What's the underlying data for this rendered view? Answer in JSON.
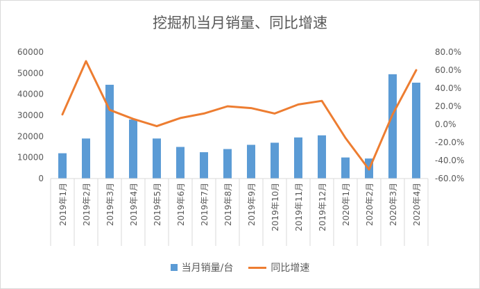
{
  "chart_data": {
    "type": "bar",
    "title": "挖掘机当月销量、同比增速",
    "categories": [
      "2019年1月",
      "2019年2月",
      "2019年3月",
      "2019年4月",
      "2019年5月",
      "2019年6月",
      "2019年7月",
      "2019年8月",
      "2019年9月",
      "2019年10月",
      "2019年11月",
      "2019年12月",
      "2020年1月",
      "2020年2月",
      "2020年3月",
      "2020年4月"
    ],
    "series": [
      {
        "name": "当月销量/台",
        "type": "bar",
        "axis": "left",
        "color": "#5B9BD5",
        "values": [
          12000,
          19000,
          44500,
          28000,
          19000,
          15000,
          12500,
          14000,
          16000,
          17000,
          19500,
          20500,
          10000,
          9500,
          49500,
          45500
        ]
      },
      {
        "name": "同比增速",
        "type": "line",
        "axis": "right",
        "color": "#ED7D31",
        "values": [
          0.11,
          0.7,
          0.16,
          0.06,
          -0.02,
          0.07,
          0.12,
          0.2,
          0.18,
          0.12,
          0.22,
          0.26,
          -0.15,
          -0.5,
          0.11,
          0.6
        ]
      }
    ],
    "y_left": {
      "ylim": [
        0,
        60000
      ],
      "ticks": [
        "0",
        "10000",
        "20000",
        "30000",
        "40000",
        "50000",
        "60000"
      ]
    },
    "y_right": {
      "ylim": [
        -0.6,
        0.8
      ],
      "ticks": [
        "-60.0%",
        "-40.0%",
        "-20.0%",
        "0.0%",
        "20.0%",
        "40.0%",
        "60.0%",
        "80.0%"
      ]
    },
    "grid": false,
    "legend": "bottom"
  }
}
